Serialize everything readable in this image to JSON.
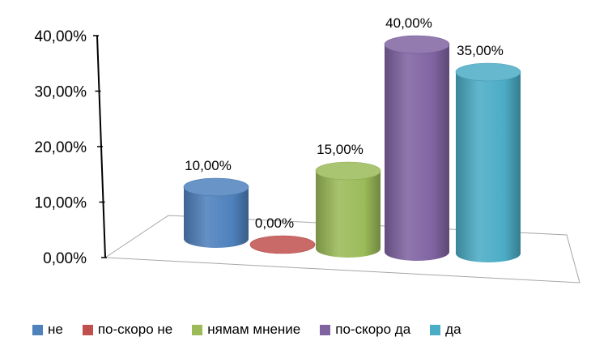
{
  "chart_data": {
    "type": "bar",
    "style": "3d-cylinder",
    "categories": [
      "не",
      "по-скоро не",
      "нямам мнение",
      "по-скоро да",
      "да"
    ],
    "values": [
      10,
      0,
      15,
      40,
      35
    ],
    "value_labels": [
      "10,00%",
      "0,00%",
      "15,00%",
      "40,00%",
      "35,00%"
    ],
    "colors": [
      "#4f81bd",
      "#c0504d",
      "#9bbb59",
      "#8064a2",
      "#4bacc6"
    ],
    "y_ticks": [
      "0,00%",
      "10,00%",
      "20,00%",
      "30,00%",
      "40,00%"
    ],
    "ylim": [
      0,
      40
    ],
    "grid": false,
    "legend_position": "bottom",
    "title": "",
    "xlabel": "",
    "ylabel": ""
  }
}
